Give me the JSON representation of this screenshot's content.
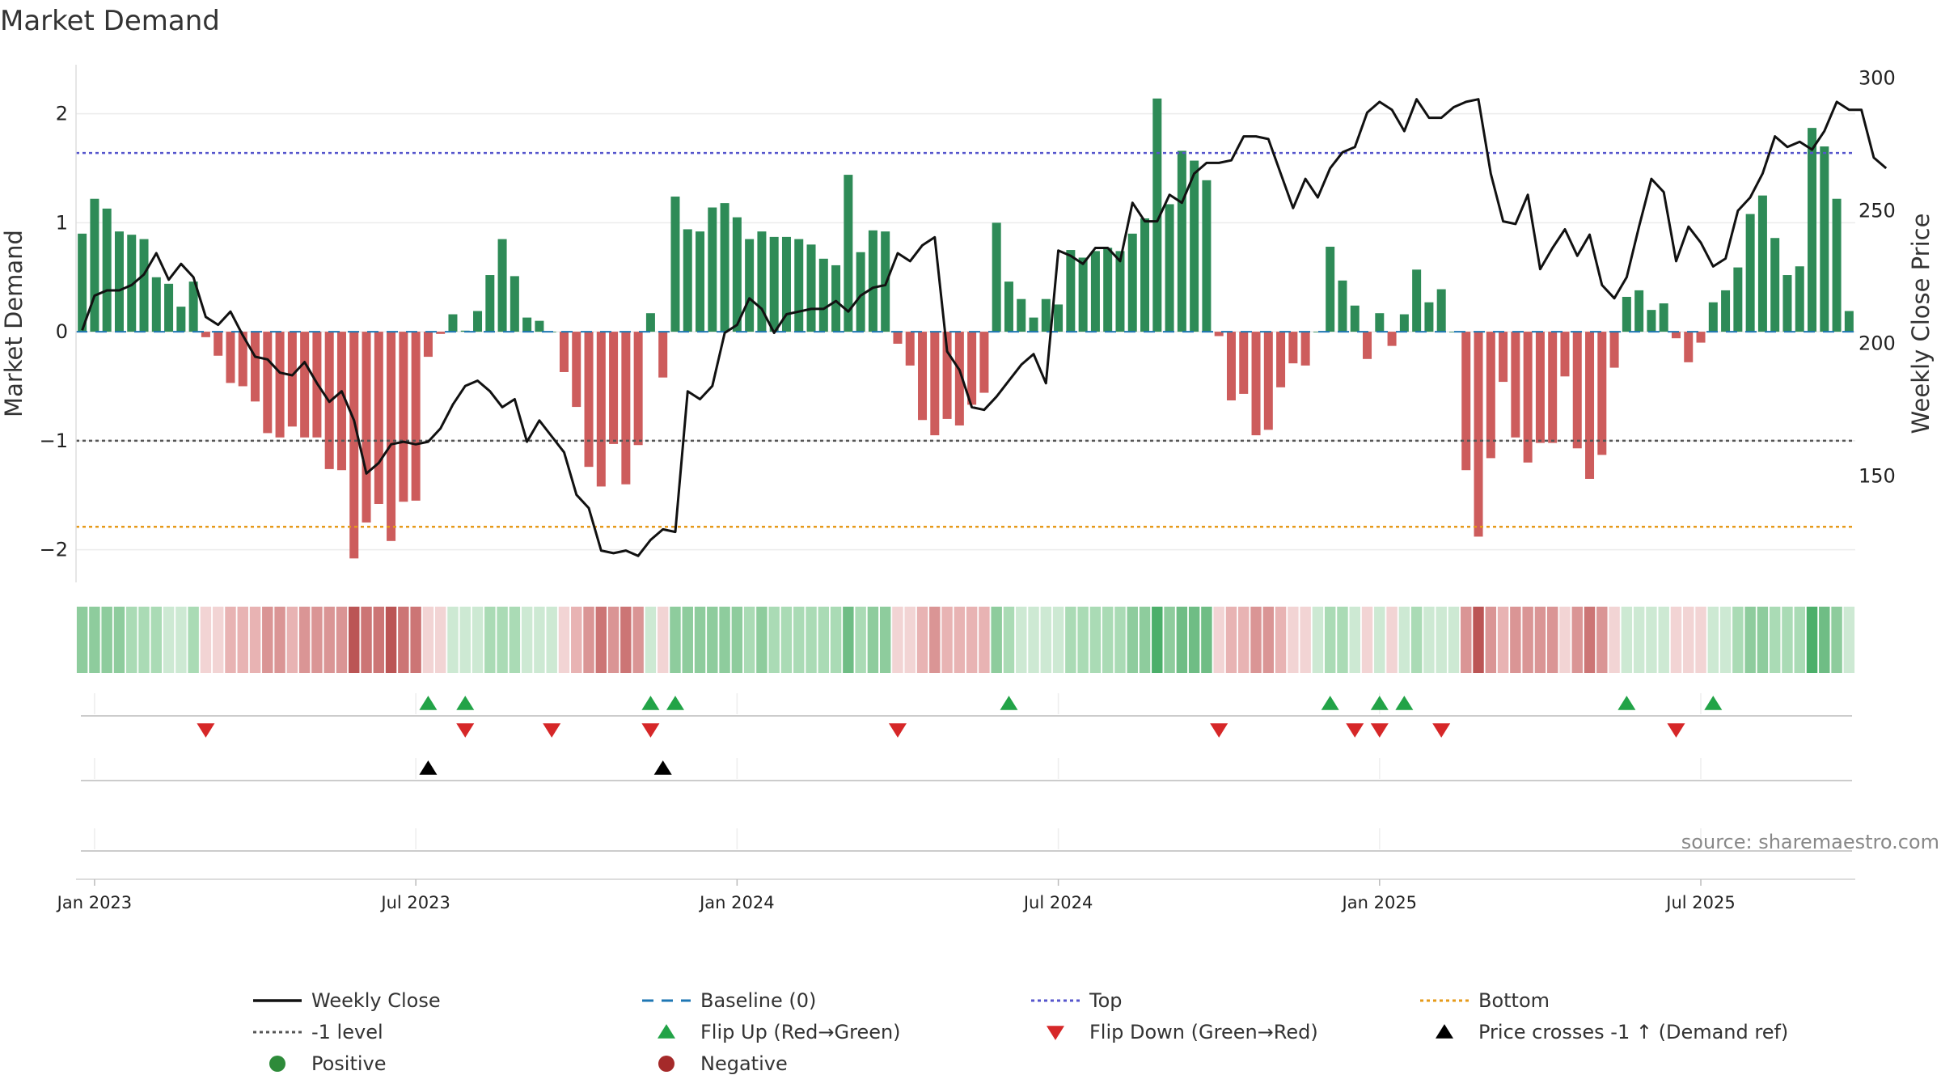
{
  "page": {
    "source": "source: sharemaestro.com"
  },
  "chart_data": {
    "type": "bar",
    "title": "Market Demand",
    "ylabel_left": "Market Demand",
    "ylabel_right": "Weekly Close Price",
    "ylim_left": [
      -2.3,
      2.45
    ],
    "ylim_right": [
      110,
      305
    ],
    "yticks_left": [
      {
        "v": 2,
        "label": "2"
      },
      {
        "v": 1,
        "label": "1"
      },
      {
        "v": 0,
        "label": "0"
      },
      {
        "v": -1,
        "label": "−1"
      },
      {
        "v": -2,
        "label": "−2"
      }
    ],
    "yticks_right": [
      {
        "v": 300,
        "label": "300"
      },
      {
        "v": 250,
        "label": "250"
      },
      {
        "v": 200,
        "label": "200"
      },
      {
        "v": 150,
        "label": "150"
      }
    ],
    "xticks": [
      {
        "i": 1.5,
        "label": "Jan 2023"
      },
      {
        "i": 27.5,
        "label": "Jul 2023"
      },
      {
        "i": 53.5,
        "label": "Jan 2024"
      },
      {
        "i": 79.5,
        "label": "Jul 2024"
      },
      {
        "i": 105.5,
        "label": "Jan 2025"
      },
      {
        "i": 131.5,
        "label": "Jul 2025"
      }
    ],
    "reference_lines": {
      "top": 1.64,
      "minus_one": -1,
      "bottom": -1.79,
      "baseline": 0
    },
    "demand": [
      0.9,
      1.22,
      1.13,
      0.92,
      0.89,
      0.85,
      0.5,
      0.44,
      0.23,
      0.46,
      -0.05,
      -0.22,
      -0.47,
      -0.5,
      -0.64,
      -0.93,
      -0.97,
      -0.87,
      -0.97,
      -0.97,
      -1.26,
      -1.27,
      -2.08,
      -1.75,
      -1.58,
      -1.92,
      -1.56,
      -1.55,
      -0.23,
      -0.02,
      0.16,
      0.01,
      0.19,
      0.52,
      0.85,
      0.51,
      0.13,
      0.1,
      0,
      -0.37,
      -0.69,
      -1.24,
      -1.42,
      -1.03,
      -1.4,
      -1.04,
      0.17,
      -0.42,
      1.24,
      0.94,
      0.92,
      1.14,
      1.18,
      1.05,
      0.85,
      0.92,
      0.87,
      0.87,
      0.85,
      0.8,
      0.67,
      0.61,
      1.44,
      0.73,
      0.93,
      0.92,
      -0.11,
      -0.31,
      -0.81,
      -0.95,
      -0.8,
      -0.86,
      -0.67,
      -0.56,
      1,
      0.46,
      0.3,
      0.13,
      0.3,
      0.25,
      0.75,
      0.68,
      0.74,
      0.77,
      0.74,
      0.9,
      1.04,
      2.14,
      1.17,
      1.66,
      1.57,
      1.39,
      -0.04,
      -0.63,
      -0.57,
      -0.95,
      -0.9,
      -0.51,
      -0.29,
      -0.31,
      0,
      0.78,
      0.47,
      0.24,
      -0.25,
      0.17,
      -0.13,
      0.16,
      0.57,
      0.27,
      0.39,
      0,
      -1.27,
      -1.88,
      -1.16,
      -0.46,
      -0.97,
      -1.2,
      -1.02,
      -1.02,
      -0.41,
      -1.07,
      -1.35,
      -1.13,
      -0.33,
      0.32,
      0.38,
      0.2,
      0.26,
      -0.06,
      -0.28,
      -0.1,
      0.27,
      0.38,
      0.59,
      1.08,
      1.25,
      0.86,
      0.52,
      0.6,
      1.87,
      1.7,
      1.22,
      0.19
    ],
    "close": [
      205,
      218,
      220,
      220,
      222,
      226,
      234,
      224,
      230,
      225,
      210,
      207,
      212,
      203,
      195,
      194,
      189,
      188,
      193,
      185,
      178,
      182,
      171,
      151,
      155,
      162,
      163,
      162,
      163,
      168,
      177,
      184,
      186,
      182,
      176,
      179,
      163,
      171,
      165,
      159,
      143,
      138,
      122,
      121,
      122,
      120,
      126,
      130,
      129,
      182,
      179,
      184,
      204,
      207,
      217,
      213,
      204,
      211,
      212,
      213,
      213,
      216,
      212,
      218,
      221,
      222,
      234,
      231,
      237,
      240,
      197,
      190,
      176,
      175,
      180,
      186,
      192,
      196,
      185,
      235,
      233,
      230,
      236,
      236,
      231,
      253,
      246,
      246,
      256,
      253,
      264,
      268,
      268,
      269,
      278,
      278,
      277,
      264,
      251,
      262,
      255,
      266,
      272,
      274,
      287,
      291,
      288,
      280,
      292,
      285,
      285,
      289,
      291,
      292,
      264,
      246,
      245,
      256,
      228,
      236,
      243,
      233,
      241,
      222,
      217,
      225,
      244,
      262,
      257,
      231,
      244,
      238,
      229,
      232,
      250,
      255,
      264,
      278,
      274,
      276,
      273,
      280,
      291,
      288,
      288,
      270,
      266
    ],
    "price_level": 115,
    "strip_colors": {
      "green": [
        "#cde9d3",
        "#aadbb5",
        "#8ecc9d",
        "#6fbd85",
        "#4caf6a"
      ],
      "red": [
        "#f2d4d4",
        "#e8b3b3",
        "#da9595",
        "#cc7575",
        "#bb5555"
      ]
    },
    "flip_up_idx": [
      28,
      31,
      46,
      48,
      75,
      101,
      105,
      107,
      125,
      132
    ],
    "flip_down_idx": [
      10,
      31,
      38,
      46,
      66,
      92,
      103,
      105,
      110,
      129
    ],
    "price_cross_idx": [
      28,
      47
    ],
    "legend": [
      {
        "label": "Weekly Close",
        "kind": "solid",
        "color": "#111111"
      },
      {
        "label": "Baseline (0)",
        "kind": "dash",
        "color": "#1f77b4"
      },
      {
        "label": "Top",
        "kind": "dot",
        "color": "#5555cc"
      },
      {
        "label": "Bottom",
        "kind": "dot",
        "color": "#e69a1a"
      },
      {
        "label": "-1 level",
        "kind": "dot",
        "color": "#555555"
      },
      {
        "label": "Flip Up (Red→Green)",
        "kind": "tri-up",
        "color": "#22a347"
      },
      {
        "label": "Flip Down (Green→Red)",
        "kind": "tri-down",
        "color": "#d62728"
      },
      {
        "label": "Price crosses -1 ↑ (Demand ref)",
        "kind": "tri-up",
        "color": "#000000"
      },
      {
        "label": "Positive",
        "kind": "dot-circle",
        "color": "#2e8b3a"
      },
      {
        "label": "Negative",
        "kind": "dot-circle",
        "color": "#a52a2a"
      }
    ],
    "colors": {
      "bar_pos": "#2e8b57",
      "bar_neg": "#cd5c5c",
      "close": "#111111",
      "baseline": "#1f77b4",
      "top": "#5555cc",
      "bottom": "#e69a1a",
      "minus_one": "#555555",
      "flip_up": "#22a347",
      "flip_down": "#d62728",
      "cross": "#000000"
    }
  }
}
